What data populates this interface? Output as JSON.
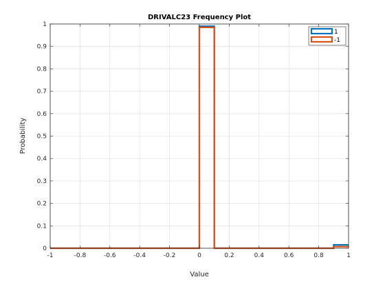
{
  "chart_data": {
    "type": "line",
    "title": "DRIVALC23 Frequency Plot",
    "xlabel": "Value",
    "ylabel": "Probability",
    "xlim": [
      -1,
      1
    ],
    "ylim": [
      0,
      1
    ],
    "xticks": [
      -1,
      -0.8,
      -0.6,
      -0.4,
      -0.2,
      0,
      0.2,
      0.4,
      0.6,
      0.8,
      1
    ],
    "xtick_labels": [
      "-1",
      "-0.8",
      "-0.6",
      "-0.4",
      "-0.2",
      "0",
      "0.2",
      "0.4",
      "0.6",
      "0.8",
      "1"
    ],
    "yticks": [
      0,
      0.1,
      0.2,
      0.3,
      0.4,
      0.5,
      0.6,
      0.7,
      0.8,
      0.9,
      1
    ],
    "ytick_labels": [
      "0",
      "0.1",
      "0.2",
      "0.3",
      "0.4",
      "0.5",
      "0.6",
      "0.7",
      "0.8",
      "0.9",
      "1"
    ],
    "grid": true,
    "legend": "top-right",
    "series": [
      {
        "name": "1",
        "color": "#0072BD",
        "x": [
          -1,
          0,
          0,
          0.1,
          0.1,
          0.9,
          0.9,
          1
        ],
        "y": [
          0,
          0,
          0.99,
          0.99,
          0,
          0,
          0.015,
          0.015
        ]
      },
      {
        "name": "-1",
        "color": "#D95319",
        "x": [
          -1,
          0,
          0,
          0.1,
          0.1,
          0.9,
          0.9,
          1
        ],
        "y": [
          0,
          0,
          0.985,
          0.985,
          0,
          0,
          0.007,
          0.007
        ]
      }
    ]
  }
}
